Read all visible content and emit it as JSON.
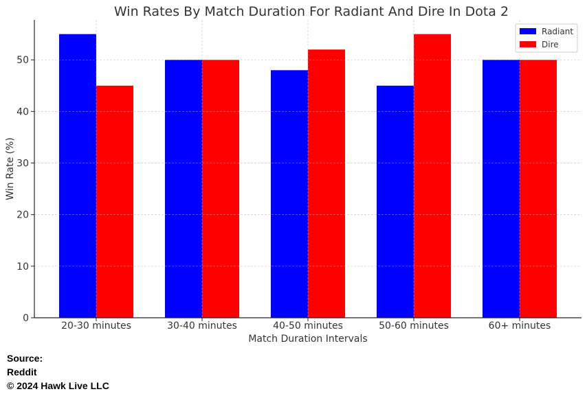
{
  "chart_data": {
    "type": "bar",
    "title": "Win Rates By Match Duration For Radiant And Dire In Dota 2",
    "xlabel": "Match Duration Intervals",
    "ylabel": "Win Rate (%)",
    "categories": [
      "20-30 minutes",
      "30-40 minutes",
      "40-50 minutes",
      "50-60 minutes",
      "60+ minutes"
    ],
    "series": [
      {
        "name": "Radiant",
        "color": "#0000ff",
        "values": [
          55,
          50,
          48,
          45,
          50
        ]
      },
      {
        "name": "Dire",
        "color": "#ff0000",
        "values": [
          45,
          50,
          52,
          55,
          50
        ]
      }
    ],
    "ylim": [
      0,
      57.75
    ],
    "yticks": [
      0,
      10,
      20,
      30,
      40,
      50
    ],
    "grid": true,
    "legend": "top-right"
  },
  "source": {
    "label": "Source:",
    "name": "Reddit",
    "copyright": "© 2024 Hawk Live LLC"
  }
}
